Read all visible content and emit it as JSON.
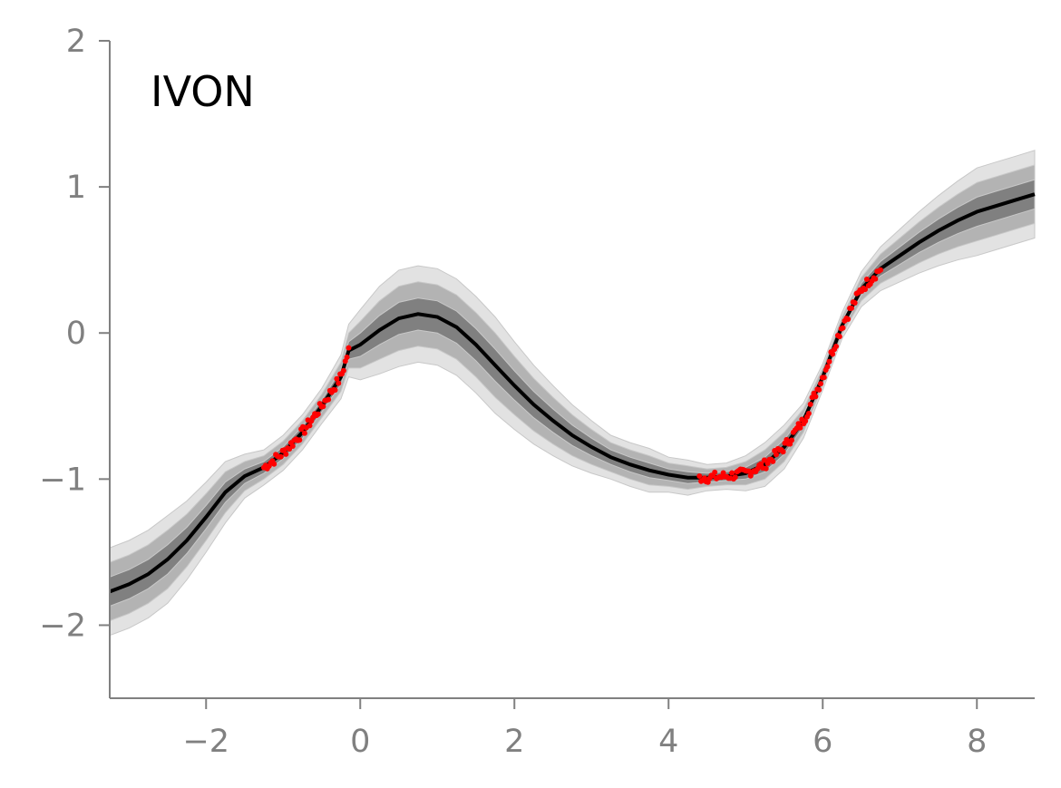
{
  "chart_data": {
    "type": "line",
    "title": "",
    "panel_label": "IVON",
    "xlabel": "",
    "ylabel": "",
    "xlim": [
      -3.25,
      8.75
    ],
    "ylim": [
      -2.5,
      2.0
    ],
    "xticks": [
      -2,
      0,
      2,
      4,
      6,
      8
    ],
    "yticks": [
      -2,
      -1,
      0,
      1,
      2
    ],
    "xtick_labels": [
      "−2",
      "0",
      "2",
      "4",
      "6",
      "8"
    ],
    "ytick_labels": [
      "−2",
      "−1",
      "0",
      "1",
      "2"
    ],
    "grid": false,
    "legend": null,
    "series": [
      {
        "role": "mean",
        "color": "#000000",
        "x": [
          -3.25,
          -3.0,
          -2.75,
          -2.5,
          -2.25,
          -2.0,
          -1.75,
          -1.5,
          -1.25,
          -1.0,
          -0.75,
          -0.5,
          -0.25,
          -0.15,
          0.0,
          0.25,
          0.5,
          0.75,
          1.0,
          1.25,
          1.5,
          1.75,
          2.0,
          2.25,
          2.5,
          2.75,
          3.0,
          3.25,
          3.5,
          3.75,
          4.0,
          4.25,
          4.5,
          4.75,
          5.0,
          5.25,
          5.5,
          5.75,
          6.0,
          6.25,
          6.5,
          6.75,
          7.0,
          7.25,
          7.5,
          7.75,
          8.0,
          8.25,
          8.5,
          8.75
        ],
        "y": [
          -1.77,
          -1.72,
          -1.65,
          -1.55,
          -1.42,
          -1.26,
          -1.09,
          -0.98,
          -0.92,
          -0.82,
          -0.68,
          -0.5,
          -0.3,
          -0.12,
          -0.08,
          0.02,
          0.1,
          0.13,
          0.11,
          0.04,
          -0.08,
          -0.22,
          -0.36,
          -0.49,
          -0.6,
          -0.7,
          -0.78,
          -0.85,
          -0.9,
          -0.94,
          -0.97,
          -0.99,
          -0.99,
          -0.98,
          -0.96,
          -0.9,
          -0.78,
          -0.6,
          -0.3,
          0.05,
          0.3,
          0.44,
          0.53,
          0.62,
          0.7,
          0.77,
          0.83,
          0.87,
          0.91,
          0.95
        ]
      }
    ],
    "uncertainty_bands": {
      "x": [
        -3.25,
        -3.0,
        -2.75,
        -2.5,
        -2.25,
        -2.0,
        -1.75,
        -1.5,
        -1.25,
        -1.0,
        -0.75,
        -0.5,
        -0.25,
        -0.15,
        0.0,
        0.25,
        0.5,
        0.75,
        1.0,
        1.25,
        1.5,
        1.75,
        2.0,
        2.25,
        2.5,
        2.75,
        3.0,
        3.25,
        3.5,
        3.75,
        4.0,
        4.25,
        4.5,
        4.75,
        5.0,
        5.25,
        5.5,
        5.75,
        6.0,
        6.25,
        6.5,
        6.75,
        7.0,
        7.25,
        7.5,
        7.75,
        8.0,
        8.25,
        8.5,
        8.75
      ],
      "half_width_1sd": [
        0.1,
        0.1,
        0.1,
        0.1,
        0.09,
        0.08,
        0.07,
        0.05,
        0.04,
        0.04,
        0.04,
        0.04,
        0.05,
        0.06,
        0.08,
        0.1,
        0.11,
        0.11,
        0.11,
        0.11,
        0.11,
        0.11,
        0.1,
        0.09,
        0.08,
        0.07,
        0.06,
        0.05,
        0.05,
        0.05,
        0.04,
        0.04,
        0.03,
        0.03,
        0.04,
        0.05,
        0.05,
        0.04,
        0.03,
        0.03,
        0.04,
        0.05,
        0.06,
        0.07,
        0.08,
        0.09,
        0.1,
        0.1,
        0.1,
        0.1
      ],
      "band_levels": [
        {
          "sd": 3,
          "color": "#e2e2e2"
        },
        {
          "sd": 2,
          "color": "#b3b3b3"
        },
        {
          "sd": 1,
          "color": "#808080"
        }
      ]
    },
    "observations": {
      "role": "training data",
      "color": "#ff0000",
      "x_ranges": [
        [
          -1.25,
          -0.15
        ],
        [
          4.4,
          6.75
        ]
      ]
    }
  }
}
